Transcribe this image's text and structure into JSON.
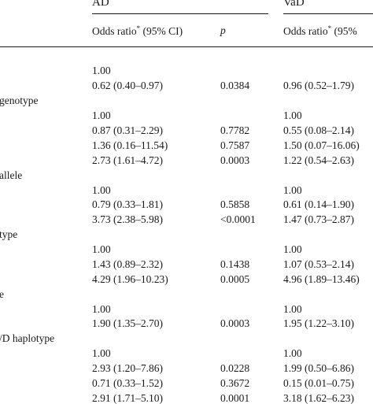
{
  "header": {
    "group_ad": "AD",
    "group_vad": "VaD",
    "or_ad_label": "Odds ratio",
    "or_ad_mark": "*",
    "or_ad_ci": "(95% CI)",
    "p_label": "p",
    "or_vad_label": "Odds ratio",
    "or_vad_mark": "*",
    "or_vad_ci": "(95%"
  },
  "sections": [
    {
      "label": "",
      "rows": [
        {
          "ad_or": "1.00",
          "p": "",
          "vad_or": ""
        },
        {
          "ad_or": "0.62 (0.40–0.97)",
          "p": "0.0384",
          "vad_or": "0.96 (0.52–1.79)"
        }
      ]
    },
    {
      "label": "genotype",
      "rows": [
        {
          "ad_or": "1.00",
          "p": "",
          "vad_or": "1.00"
        },
        {
          "ad_or": "0.87 (0.31–2.29)",
          "p": "0.7782",
          "vad_or": "0.55 (0.08–2.14)"
        },
        {
          "ad_or": "1.36 (0.16–11.54)",
          "p": "0.7587",
          "vad_or": "1.50 (0.07–16.06)"
        },
        {
          "ad_or": "2.73 (1.61–4.72)",
          "p": "0.0003",
          "vad_or": "1.22 (0.54–2.63)"
        }
      ]
    },
    {
      "label": "allele",
      "rows": [
        {
          "ad_or": "1.00",
          "p": "",
          "vad_or": "1.00"
        },
        {
          "ad_or": "0.79 (0.33–1.81)",
          "p": "0.5858",
          "vad_or": "0.61 (0.14–1.90)"
        },
        {
          "ad_or": "3.73 (2.38–5.98)",
          "p": "<0.0001",
          "vad_or": "1.47 (0.73–2.87)"
        }
      ]
    },
    {
      "label": "type",
      "rows": [
        {
          "ad_or": "1.00",
          "p": "",
          "vad_or": "1.00"
        },
        {
          "ad_or": "1.43 (0.89–2.32)",
          "p": "0.1438",
          "vad_or": "1.07 (0.53–2.14)"
        },
        {
          "ad_or": "4.29 (1.96–10.23)",
          "p": "0.0005",
          "vad_or": "4.96 (1.89–13.46)"
        }
      ]
    },
    {
      "label": "e",
      "rows": [
        {
          "ad_or": "1.00",
          "p": "",
          "vad_or": "1.00"
        },
        {
          "ad_or": "1.90 (1.35–2.70)",
          "p": "0.0003",
          "vad_or": "1.95 (1.22–3.10)"
        }
      ]
    },
    {
      "label": "/D haplotype",
      "rows": [
        {
          "ad_or": "1.00",
          "p": "",
          "vad_or": "1.00"
        },
        {
          "ad_or": "2.93 (1.20–7.86)",
          "p": "0.0228",
          "vad_or": "1.99 (0.50–6.86)"
        },
        {
          "ad_or": "0.71 (0.33–1.52)",
          "p": "0.3672",
          "vad_or": "0.15 (0.01–0.75)"
        },
        {
          "ad_or": "2.91 (1.71–5.10)",
          "p": "0.0001",
          "vad_or": "3.18 (1.62–6.23)"
        }
      ]
    }
  ]
}
